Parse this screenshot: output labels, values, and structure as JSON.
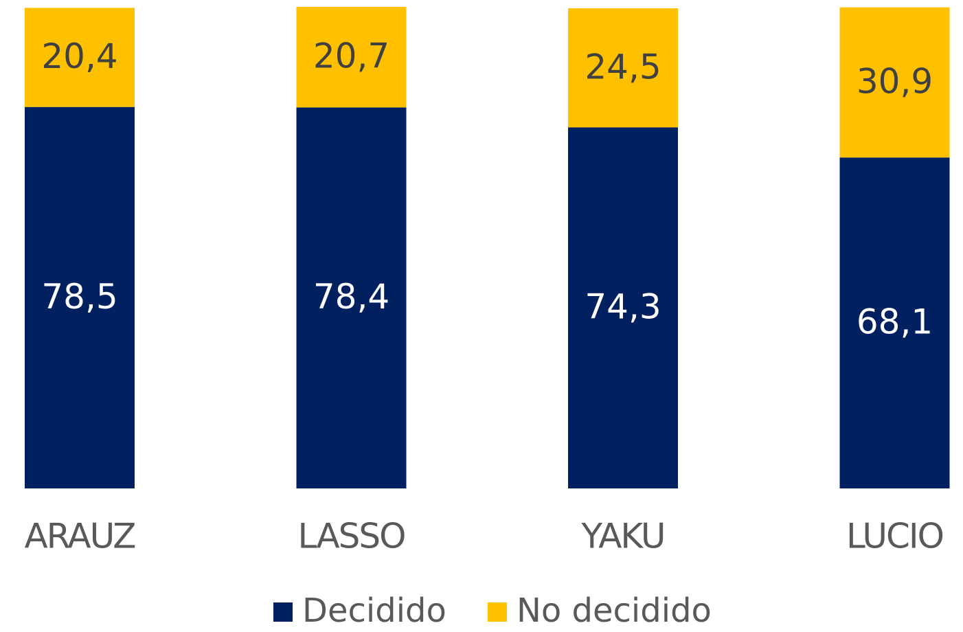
{
  "chart_data": {
    "type": "stacked-bar",
    "categories": [
      "ARAUZ",
      "LASSO",
      "YAKU",
      "LUCIO"
    ],
    "series": [
      {
        "name": "Decidido",
        "color": "#002060",
        "values": [
          78.5,
          78.4,
          74.3,
          68.1
        ],
        "value_labels": [
          "78,5",
          "78,4",
          "74,3",
          "68,1"
        ]
      },
      {
        "name": "No decidido",
        "color": "#ffc000",
        "values": [
          20.4,
          20.7,
          24.5,
          30.9
        ],
        "value_labels": [
          "20,4",
          "20,7",
          "24,5",
          "30,9"
        ]
      }
    ],
    "legend": "bottom"
  }
}
